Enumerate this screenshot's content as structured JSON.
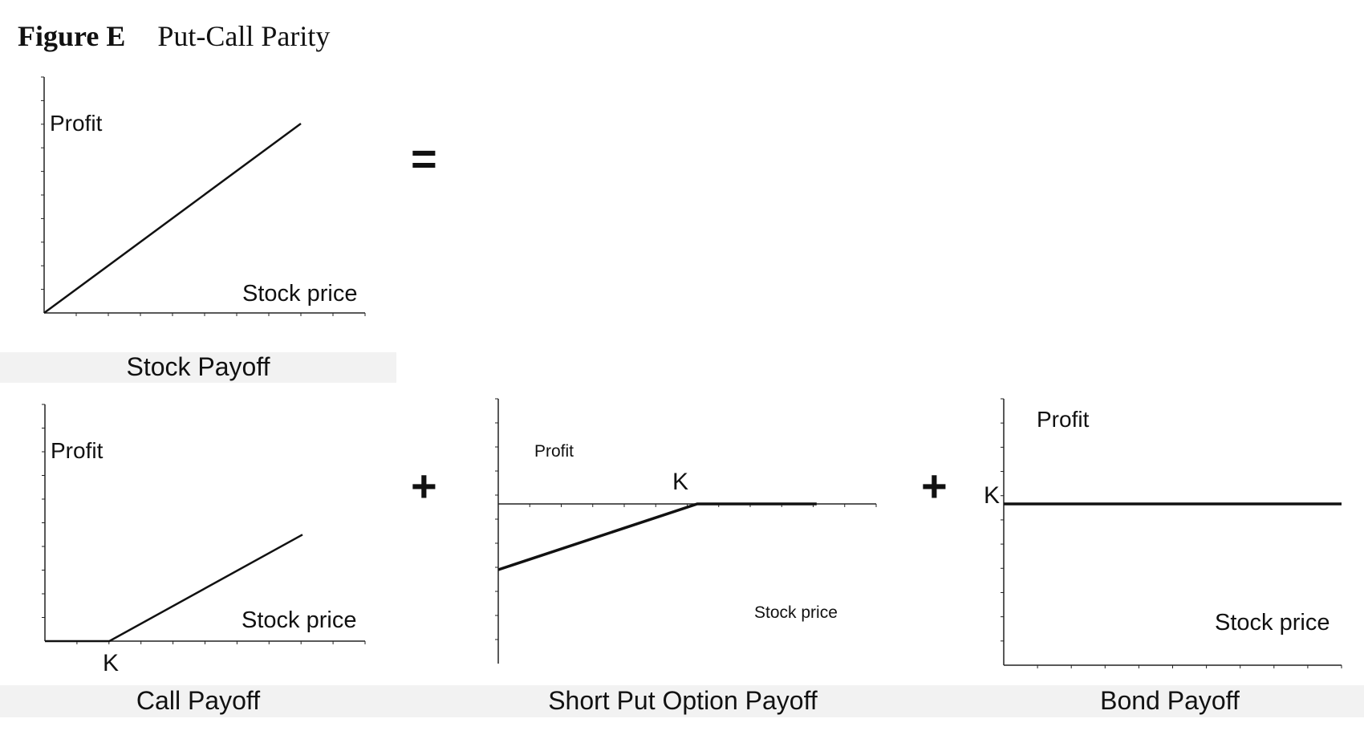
{
  "figure": {
    "label": "Figure E",
    "title": "Put-Call Parity"
  },
  "operators": {
    "equals": "=",
    "plus1": "+",
    "plus2": "+"
  },
  "chart_data": [
    {
      "type": "line",
      "title": "Stock Payoff",
      "ylabel": "Profit",
      "xlabel": "Stock price",
      "series": [
        {
          "x": [
            0,
            1
          ],
          "y": [
            0,
            1
          ]
        }
      ]
    },
    {
      "type": "line",
      "title": "Call Payoff",
      "ylabel": "Profit",
      "xlabel": "Stock price",
      "annotations": [
        "K"
      ],
      "series": [
        {
          "x": [
            0,
            0.25,
            1
          ],
          "y": [
            0,
            0,
            0.75
          ]
        }
      ]
    },
    {
      "type": "line",
      "title": "Short Put Option Payoff",
      "ylabel": "Profit",
      "xlabel": "Stock price",
      "annotations": [
        "K"
      ],
      "series": [
        {
          "x": [
            0,
            0.5,
            0.8
          ],
          "y": [
            -0.5,
            0,
            0
          ]
        }
      ]
    },
    {
      "type": "line",
      "title": "Bond Payoff",
      "ylabel": "Profit",
      "xlabel": "Stock price",
      "annotations": [
        "K"
      ],
      "series": [
        {
          "x": [
            0,
            1
          ],
          "y": [
            1,
            1
          ]
        }
      ]
    }
  ]
}
